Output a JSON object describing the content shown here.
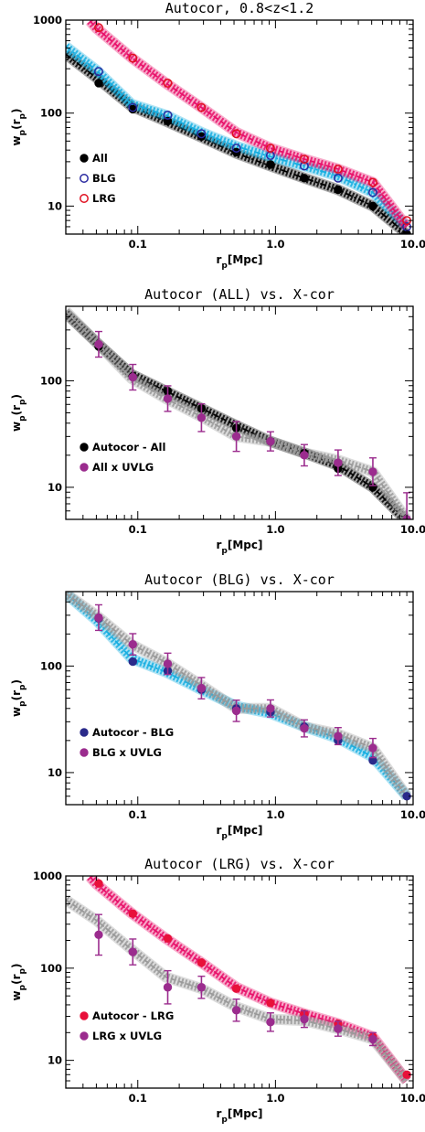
{
  "chart_data": [
    {
      "type": "scatter",
      "title": "Autocor, 0.8<z<1.2",
      "xlabel": "r_p[Mpc]",
      "ylabel": "w_p(r_p)",
      "xscale": "log",
      "yscale": "log",
      "xlim": [
        0.03,
        10.0
      ],
      "ylim": [
        5,
        1000
      ],
      "x_tick_labels": [
        "0.1",
        "1.0",
        "10.0"
      ],
      "y_tick_labels": [
        "10",
        "100",
        "1000"
      ],
      "legend_position": "left-middle",
      "series": [
        {
          "name": "All",
          "color": "#000000",
          "marker": "filled-circle",
          "band_color": "#000000",
          "band_style": "dash-dot",
          "x": [
            0.052,
            0.092,
            0.165,
            0.29,
            0.52,
            0.92,
            1.62,
            2.85,
            5.1,
            9.0
          ],
          "y": [
            210,
            110,
            82,
            56,
            38,
            28,
            20,
            15,
            10,
            5
          ],
          "band_x": [
            0.03,
            0.05,
            0.09,
            0.16,
            0.29,
            0.52,
            0.92,
            1.62,
            2.85,
            5.1,
            9.0
          ],
          "band_y": [
            430,
            240,
            118,
            82,
            55,
            37,
            27,
            20,
            15,
            10,
            5
          ]
        },
        {
          "name": "BLG",
          "color": "#2a2aa0",
          "marker": "open-circle",
          "band_color": "#17aee0",
          "band_style": "dash-dot",
          "x": [
            0.052,
            0.092,
            0.165,
            0.29,
            0.52,
            0.92,
            1.62,
            2.85,
            5.1,
            9.0
          ],
          "y": [
            280,
            115,
            95,
            60,
            42,
            35,
            27,
            20,
            14,
            6
          ],
          "band_x": [
            0.03,
            0.05,
            0.09,
            0.16,
            0.29,
            0.52,
            0.92,
            1.62,
            2.85,
            5.1,
            9.0
          ],
          "band_y": [
            520,
            290,
            125,
            95,
            62,
            44,
            34,
            27,
            21,
            14,
            6
          ]
        },
        {
          "name": "LRG",
          "color": "#e01020",
          "marker": "open-circle",
          "band_color": "#e8106a",
          "band_style": "dash",
          "x": [
            0.052,
            0.092,
            0.165,
            0.29,
            0.52,
            0.92,
            1.62,
            2.85,
            5.1,
            9.0
          ],
          "y": [
            830,
            390,
            210,
            115,
            60,
            42,
            32,
            25,
            18,
            7
          ],
          "band_x": [
            0.045,
            0.05,
            0.09,
            0.16,
            0.29,
            0.52,
            0.92,
            1.62,
            2.85,
            5.1,
            9.0
          ],
          "band_y": [
            980,
            820,
            395,
            210,
            115,
            62,
            42,
            32,
            25,
            18,
            6
          ]
        }
      ]
    },
    {
      "type": "scatter",
      "title": "Autocor (ALL) vs. X-cor",
      "xlabel": "r_p[Mpc]",
      "ylabel": "w_p(r_p)",
      "xscale": "log",
      "yscale": "log",
      "xlim": [
        0.03,
        10.0
      ],
      "ylim": [
        5,
        500
      ],
      "x_tick_labels": [
        "0.1",
        "1.0",
        "10.0"
      ],
      "y_tick_labels": [
        "10",
        "100"
      ],
      "legend_position": "left-lower",
      "series": [
        {
          "name": "Autocor - All",
          "color": "#000000",
          "marker": "filled-circle",
          "band_color": "#000000",
          "band_style": "dash",
          "x": [
            0.052,
            0.092,
            0.165,
            0.29,
            0.52,
            0.92,
            1.62,
            2.85,
            5.1
          ],
          "y": [
            210,
            110,
            80,
            55,
            36,
            27,
            21,
            15,
            10
          ],
          "band_x": [
            0.03,
            0.05,
            0.09,
            0.16,
            0.29,
            0.52,
            0.92,
            1.62,
            2.85,
            5.1,
            9.0
          ],
          "band_y": [
            430,
            230,
            115,
            80,
            55,
            38,
            27,
            21,
            16,
            10,
            4.8
          ]
        },
        {
          "name": "All x UVLG",
          "color": "#9b2c8e",
          "marker": "filled-circle",
          "band_color": "#9a9a9a",
          "band_style": "dash",
          "x": [
            0.052,
            0.092,
            0.165,
            0.29,
            0.52,
            0.92,
            1.62,
            2.85,
            5.1,
            9.0
          ],
          "y": [
            220,
            108,
            68,
            45,
            30,
            27,
            20,
            17,
            14,
            5
          ],
          "err": [
            0.12,
            0.12,
            0.12,
            0.13,
            0.14,
            0.09,
            0.1,
            0.12,
            0.13,
            0.25
          ],
          "band_x": [
            0.03,
            0.05,
            0.09,
            0.16,
            0.29,
            0.52,
            0.92,
            1.62,
            2.85,
            5.1,
            9.0
          ],
          "band_y": [
            450,
            230,
            105,
            68,
            46,
            30,
            27,
            21,
            18,
            14,
            5
          ]
        }
      ]
    },
    {
      "type": "scatter",
      "title": "Autocor (BLG) vs. X-cor",
      "xlabel": "r_p[Mpc]",
      "ylabel": "w_p(r_p)",
      "xscale": "log",
      "yscale": "log",
      "xlim": [
        0.03,
        10.0
      ],
      "ylim": [
        5,
        500
      ],
      "x_tick_labels": [
        "0.1",
        "1.0",
        "10.0"
      ],
      "y_tick_labels": [
        "10",
        "100"
      ],
      "legend_position": "left-lower",
      "series": [
        {
          "name": "Autocor - BLG",
          "color": "#2a2a8a",
          "marker": "filled-circle",
          "band_color": "#17aee0",
          "band_style": "dash-dot",
          "x": [
            0.052,
            0.092,
            0.165,
            0.29,
            0.52,
            0.92,
            1.62,
            2.85,
            5.1,
            9.0
          ],
          "y": [
            280,
            110,
            90,
            60,
            40,
            37,
            27,
            20,
            13,
            6
          ],
          "band_x": [
            0.03,
            0.05,
            0.09,
            0.16,
            0.29,
            0.52,
            0.92,
            1.62,
            2.85,
            5.1,
            9.0
          ],
          "band_y": [
            480,
            270,
            118,
            88,
            60,
            42,
            36,
            27,
            21,
            14,
            6
          ]
        },
        {
          "name": "BLG x UVLG",
          "color": "#9b2c8e",
          "marker": "filled-circle",
          "band_color": "#9a9a9a",
          "band_style": "dash",
          "x": [
            0.052,
            0.092,
            0.165,
            0.29,
            0.52,
            0.92,
            1.62,
            2.85,
            5.1
          ],
          "y": [
            285,
            160,
            105,
            62,
            38,
            40,
            26,
            22,
            17
          ],
          "err": [
            0.12,
            0.1,
            0.1,
            0.1,
            0.1,
            0.08,
            0.08,
            0.08,
            0.09
          ],
          "band_x": [
            0.03,
            0.05,
            0.09,
            0.16,
            0.29,
            0.52,
            0.92,
            1.62,
            2.85,
            5.1,
            9.0
          ],
          "band_y": [
            480,
            300,
            160,
            108,
            66,
            40,
            40,
            27,
            23,
            17,
            6
          ]
        }
      ]
    },
    {
      "type": "scatter",
      "title": "Autocor (LRG) vs. X-cor",
      "xlabel": "r_p[Mpc]",
      "ylabel": "w_p(r_p)",
      "xscale": "log",
      "yscale": "log",
      "xlim": [
        0.03,
        10.0
      ],
      "ylim": [
        5,
        1000
      ],
      "x_tick_labels": [
        "0.1",
        "1.0",
        "10.0"
      ],
      "y_tick_labels": [
        "10",
        "100",
        "1000"
      ],
      "legend_position": "left-lower",
      "series": [
        {
          "name": "Autocor - LRG",
          "color": "#e8103a",
          "marker": "filled-circle",
          "band_color": "#e8106a",
          "band_style": "dash",
          "x": [
            0.052,
            0.092,
            0.165,
            0.29,
            0.52,
            0.92,
            1.62,
            2.85,
            5.1,
            9.0
          ],
          "y": [
            830,
            390,
            210,
            115,
            60,
            42,
            32,
            25,
            18,
            7
          ],
          "band_x": [
            0.045,
            0.05,
            0.09,
            0.16,
            0.29,
            0.52,
            0.92,
            1.62,
            2.85,
            5.1,
            9.0
          ],
          "band_y": [
            980,
            820,
            395,
            210,
            115,
            62,
            42,
            32,
            25,
            18,
            6
          ]
        },
        {
          "name": "LRG x UVLG",
          "color": "#9b2c8e",
          "marker": "filled-circle",
          "band_color": "#9a9a9a",
          "band_style": "dash",
          "x": [
            0.052,
            0.092,
            0.165,
            0.29,
            0.52,
            0.92,
            1.62,
            2.85,
            5.1
          ],
          "y": [
            230,
            150,
            62,
            62,
            35,
            26,
            28,
            22,
            17
          ],
          "err": [
            0.22,
            0.14,
            0.18,
            0.12,
            0.12,
            0.1,
            0.09,
            0.08,
            0.07
          ],
          "band_x": [
            0.03,
            0.05,
            0.09,
            0.16,
            0.29,
            0.52,
            0.92,
            1.62,
            2.85,
            5.1,
            9.0
          ],
          "band_y": [
            550,
            330,
            160,
            80,
            60,
            38,
            28,
            27,
            22,
            17,
            6
          ]
        }
      ]
    }
  ]
}
